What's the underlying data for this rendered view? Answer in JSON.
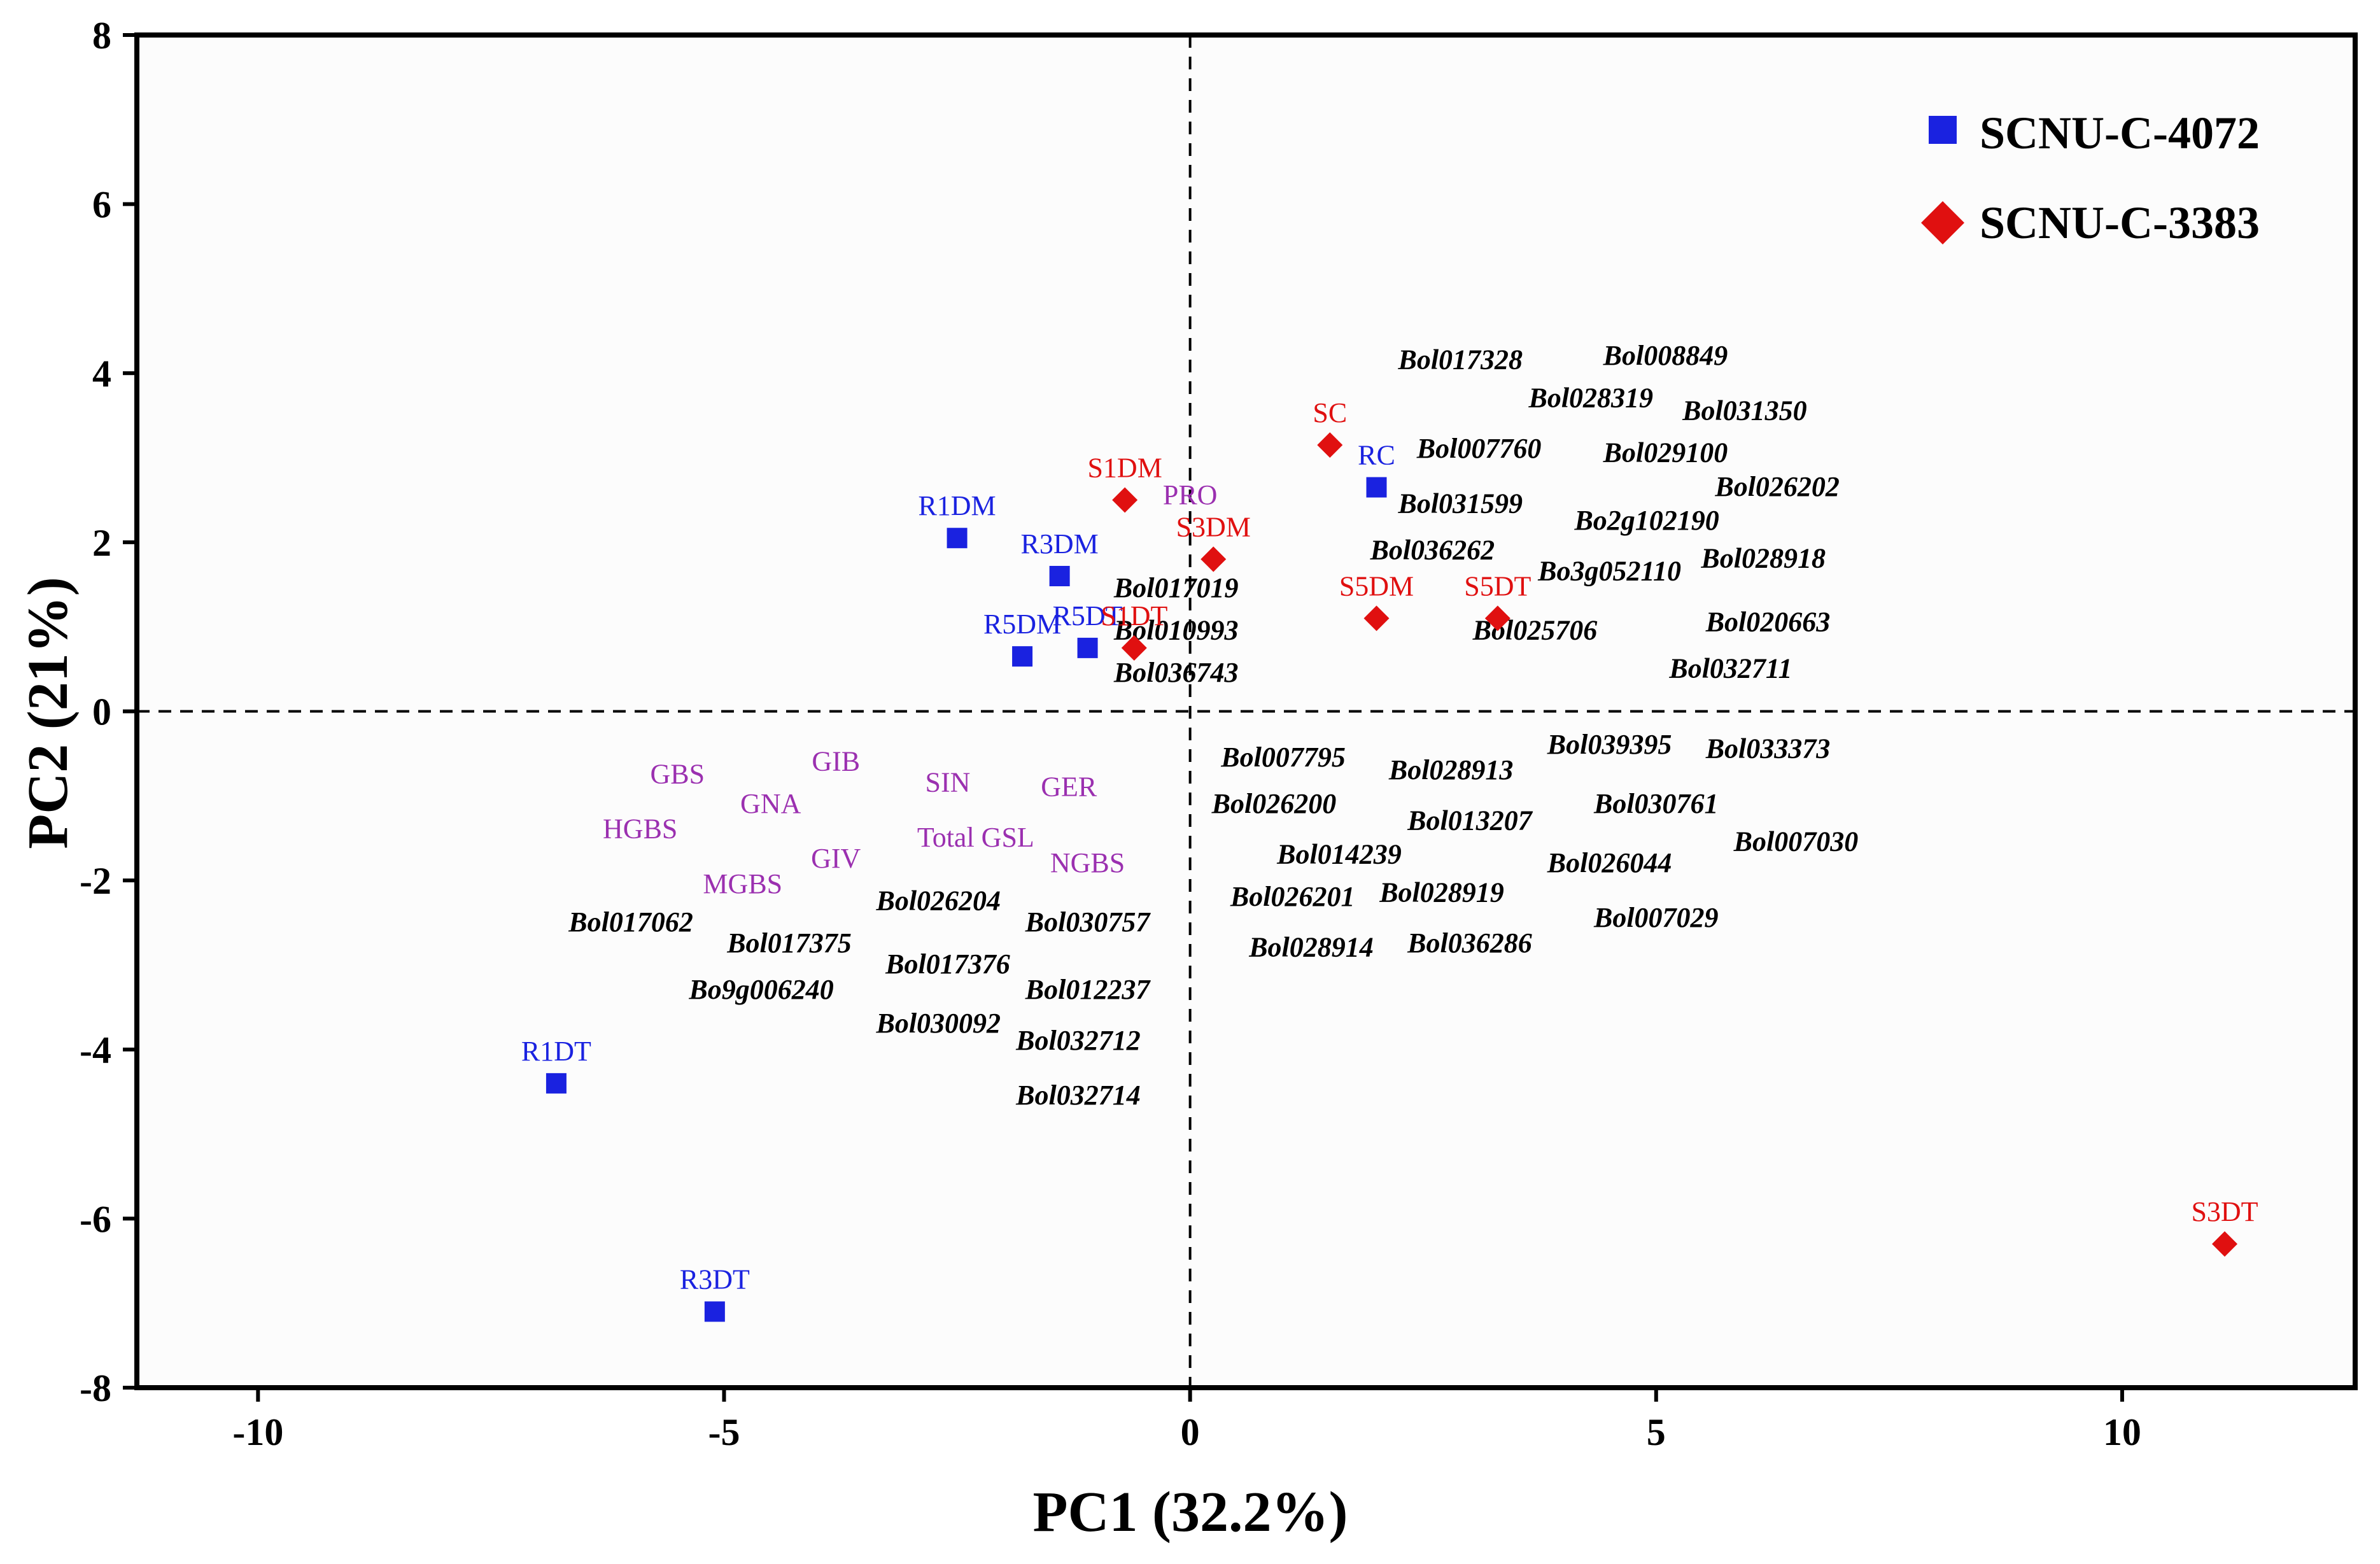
{
  "chart_data": {
    "type": "scatter",
    "xlabel": "PC1 (32.2%)",
    "ylabel": "PC2 (21%)",
    "xlim": [
      -11.3,
      12.5
    ],
    "ylim": [
      -8,
      8
    ],
    "xticks": [
      -10,
      -5,
      0,
      5,
      10
    ],
    "yticks": [
      -8,
      -6,
      -4,
      -2,
      0,
      2,
      4,
      6,
      8
    ],
    "reference_lines": {
      "x": 0,
      "y": 0,
      "style": "dashed"
    },
    "legend_position": "top-right",
    "colors": {
      "scnu4072": "#1a22e0",
      "scnu3383": "#e01010",
      "trait": "#9b30b0",
      "gene": "#000000"
    },
    "series": [
      {
        "name": "SCNU-C-4072",
        "marker": "square",
        "color": "#1a22e0",
        "points": [
          {
            "label": "R1DM",
            "x": -2.5,
            "y": 2.05
          },
          {
            "label": "R3DM",
            "x": -1.4,
            "y": 1.6
          },
          {
            "label": "R5DM",
            "x": -1.8,
            "y": 0.65
          },
          {
            "label": "R5DT",
            "x": -1.1,
            "y": 0.75
          },
          {
            "label": "RC",
            "x": 2.0,
            "y": 2.65
          },
          {
            "label": "R1DT",
            "x": -6.8,
            "y": -4.4
          },
          {
            "label": "R3DT",
            "x": -5.1,
            "y": -7.1
          }
        ]
      },
      {
        "name": "SCNU-C-3383",
        "marker": "diamond",
        "color": "#e01010",
        "points": [
          {
            "label": "S1DM",
            "x": -0.7,
            "y": 2.5
          },
          {
            "label": "S3DM",
            "x": 0.25,
            "y": 1.8
          },
          {
            "label": "S1DT",
            "x": -0.6,
            "y": 0.75
          },
          {
            "label": "SC",
            "x": 1.5,
            "y": 3.15
          },
          {
            "label": "S5DM",
            "x": 2.0,
            "y": 1.1
          },
          {
            "label": "S5DT",
            "x": 3.3,
            "y": 1.1
          },
          {
            "label": "S3DT",
            "x": 11.1,
            "y": -6.3
          }
        ]
      }
    ],
    "trait_labels": [
      {
        "label": "PRO",
        "x": 0.0,
        "y": 2.45
      },
      {
        "label": "GBS",
        "x": -5.5,
        "y": -0.85
      },
      {
        "label": "GIB",
        "x": -3.8,
        "y": -0.7
      },
      {
        "label": "GNA",
        "x": -4.5,
        "y": -1.2
      },
      {
        "label": "SIN",
        "x": -2.6,
        "y": -0.95
      },
      {
        "label": "GER",
        "x": -1.3,
        "y": -1.0
      },
      {
        "label": "HGBS",
        "x": -5.9,
        "y": -1.5
      },
      {
        "label": "Total GSL",
        "x": -2.3,
        "y": -1.6
      },
      {
        "label": "GIV",
        "x": -3.8,
        "y": -1.85
      },
      {
        "label": "MGBS",
        "x": -4.8,
        "y": -2.15
      },
      {
        "label": "NGBS",
        "x": -1.1,
        "y": -1.9
      }
    ],
    "variable_labels": [
      {
        "label": "Bol017328",
        "x": 2.9,
        "y": 4.05
      },
      {
        "label": "Bol008849",
        "x": 5.1,
        "y": 4.1
      },
      {
        "label": "Bol028319",
        "x": 4.3,
        "y": 3.6
      },
      {
        "label": "Bol031350",
        "x": 5.95,
        "y": 3.45
      },
      {
        "label": "Bol007760",
        "x": 3.1,
        "y": 3.0
      },
      {
        "label": "Bol029100",
        "x": 5.1,
        "y": 2.95
      },
      {
        "label": "Bol026202",
        "x": 6.3,
        "y": 2.55
      },
      {
        "label": "Bol031599",
        "x": 2.9,
        "y": 2.35
      },
      {
        "label": "Bo2g102190",
        "x": 4.9,
        "y": 2.15
      },
      {
        "label": "Bol036262",
        "x": 2.6,
        "y": 1.8
      },
      {
        "label": "Bol028918",
        "x": 6.15,
        "y": 1.7
      },
      {
        "label": "Bo3g052110",
        "x": 4.5,
        "y": 1.55
      },
      {
        "label": "Bol017019",
        "x": -0.15,
        "y": 1.35
      },
      {
        "label": "Bol010993",
        "x": -0.15,
        "y": 0.85
      },
      {
        "label": "Bol025706",
        "x": 3.7,
        "y": 0.85
      },
      {
        "label": "Bol020663",
        "x": 6.2,
        "y": 0.95
      },
      {
        "label": "Bol036743",
        "x": -0.15,
        "y": 0.35
      },
      {
        "label": "Bol032711",
        "x": 5.8,
        "y": 0.4
      },
      {
        "label": "Bol039395",
        "x": 4.5,
        "y": -0.5
      },
      {
        "label": "Bol033373",
        "x": 6.2,
        "y": -0.55
      },
      {
        "label": "Bol007795",
        "x": 1.0,
        "y": -0.65
      },
      {
        "label": "Bol028913",
        "x": 2.8,
        "y": -0.8
      },
      {
        "label": "Bol026200",
        "x": 0.9,
        "y": -1.2
      },
      {
        "label": "Bol030761",
        "x": 5.0,
        "y": -1.2
      },
      {
        "label": "Bol013207",
        "x": 3.0,
        "y": -1.4
      },
      {
        "label": "Bol007030",
        "x": 6.5,
        "y": -1.65
      },
      {
        "label": "Bol014239",
        "x": 1.6,
        "y": -1.8
      },
      {
        "label": "Bol026044",
        "x": 4.5,
        "y": -1.9
      },
      {
        "label": "Bol026201",
        "x": 1.1,
        "y": -2.3
      },
      {
        "label": "Bol028919",
        "x": 2.7,
        "y": -2.25
      },
      {
        "label": "Bol007029",
        "x": 5.0,
        "y": -2.55
      },
      {
        "label": "Bol028914",
        "x": 1.3,
        "y": -2.9
      },
      {
        "label": "Bol036286",
        "x": 3.0,
        "y": -2.85
      },
      {
        "label": "Bol017062",
        "x": -6.0,
        "y": -2.6
      },
      {
        "label": "Bol026204",
        "x": -2.7,
        "y": -2.35
      },
      {
        "label": "Bol030757",
        "x": -1.1,
        "y": -2.6
      },
      {
        "label": "Bol017375",
        "x": -4.3,
        "y": -2.85
      },
      {
        "label": "Bol017376",
        "x": -2.6,
        "y": -3.1
      },
      {
        "label": "Bo9g006240",
        "x": -4.6,
        "y": -3.4
      },
      {
        "label": "Bol012237",
        "x": -1.1,
        "y": -3.4
      },
      {
        "label": "Bol030092",
        "x": -2.7,
        "y": -3.8
      },
      {
        "label": "Bol032712",
        "x": -1.2,
        "y": -4.0
      },
      {
        "label": "Bol032714",
        "x": -1.2,
        "y": -4.65
      }
    ]
  }
}
